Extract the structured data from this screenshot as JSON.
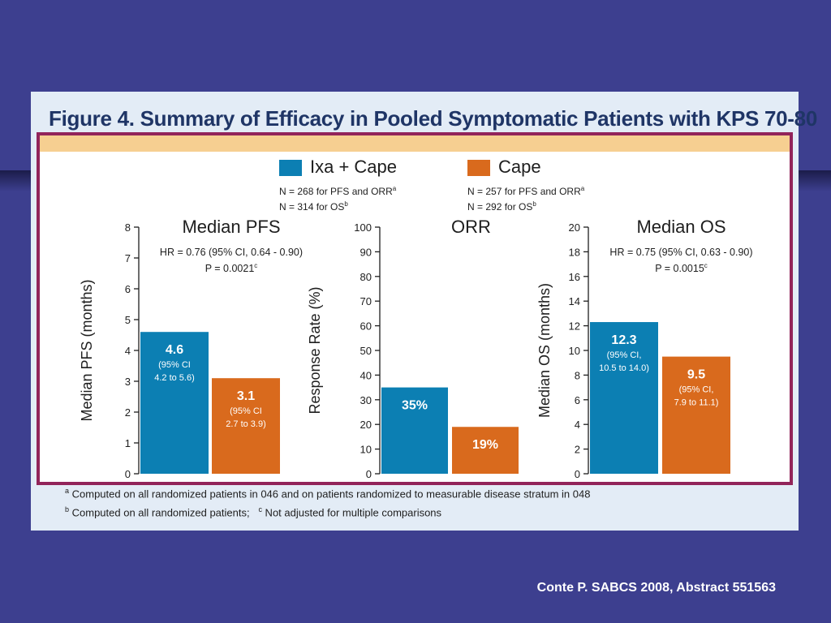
{
  "figure_title": "Figure 4. Summary of Efficacy in Pooled Symptomatic Patients with KPS 70-80",
  "legend": [
    {
      "label": "Ixa + Cape",
      "color": "#0c7fb3",
      "note1": "N = 268 for PFS and ORR",
      "note1_sup": "a",
      "note2": "N = 314 for OS",
      "note2_sup": "b"
    },
    {
      "label": "Cape",
      "color": "#d96a1d",
      "note1": "N = 257 for PFS and ORR",
      "note1_sup": "a",
      "note2": "N = 292 for OS",
      "note2_sup": "b"
    }
  ],
  "chart_data": [
    {
      "type": "bar",
      "title": "Median PFS",
      "ylabel": "Median PFS (months)",
      "ylim": [
        0,
        8
      ],
      "yticks": [
        0,
        1,
        2,
        3,
        4,
        5,
        6,
        7,
        8
      ],
      "stat_line1": "HR = 0.76 (95% CI, 0.64 - 0.90)",
      "stat_line2": "P = 0.0021",
      "stat_sup": "c",
      "series": [
        {
          "name": "Ixa + Cape",
          "value": 4.6,
          "label_main": "4.6",
          "label_sub": [
            "(95% CI",
            "4.2 to 5.6)"
          ]
        },
        {
          "name": "Cape",
          "value": 3.1,
          "label_main": "3.1",
          "label_sub": [
            "(95% CI",
            "2.7 to 3.9)"
          ]
        }
      ]
    },
    {
      "type": "bar",
      "title": "ORR",
      "ylabel": "Response Rate (%)",
      "ylim": [
        0,
        100
      ],
      "yticks": [
        0,
        10,
        20,
        30,
        40,
        50,
        60,
        70,
        80,
        90,
        100
      ],
      "series": [
        {
          "name": "Ixa + Cape",
          "value": 35,
          "label_main": "35%",
          "label_sub": []
        },
        {
          "name": "Cape",
          "value": 19,
          "label_main": "19%",
          "label_sub": []
        }
      ]
    },
    {
      "type": "bar",
      "title": "Median OS",
      "ylabel": "Median OS (months)",
      "ylim": [
        0,
        20
      ],
      "yticks": [
        0,
        2,
        4,
        6,
        8,
        10,
        12,
        14,
        16,
        18,
        20
      ],
      "stat_line1": "HR = 0.75 (95% CI, 0.63 - 0.90)",
      "stat_line2": "P = 0.0015",
      "stat_sup": "c",
      "series": [
        {
          "name": "Ixa + Cape",
          "value": 12.3,
          "label_main": "12.3",
          "label_sub": [
            "(95% CI,",
            "10.5 to 14.0)"
          ]
        },
        {
          "name": "Cape",
          "value": 9.5,
          "label_main": "9.5",
          "label_sub": [
            "(95% CI,",
            "7.9 to 11.1)"
          ]
        }
      ]
    }
  ],
  "footnotes": [
    {
      "sup": "a",
      "text": " Computed on all randomized patients in 046 and on patients randomized to measurable disease stratum in 048"
    },
    {
      "sup": "b",
      "text": " Computed on all randomized patients;   ",
      "sup2": "c",
      "text2": " Not adjusted for multiple comparisons"
    }
  ],
  "citation": "Conte P. SABCS 2008, Abstract 551563"
}
